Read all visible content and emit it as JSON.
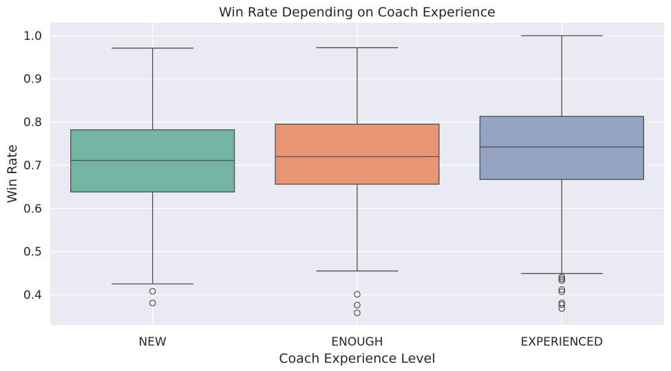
{
  "chart_data": {
    "type": "box",
    "title": "Win Rate Depending on Coach Experience",
    "xlabel": "Coach Experience Level",
    "ylabel": "Win Rate",
    "ylim": [
      0.33,
      1.03
    ],
    "yticks": [
      0.4,
      0.5,
      0.6,
      0.7,
      0.8,
      0.9,
      1.0
    ],
    "ytick_labels": [
      "0.4",
      "0.5",
      "0.6",
      "0.7",
      "0.8",
      "0.9",
      "1.0"
    ],
    "grid": true,
    "background": "#eaeaf2",
    "categories": [
      "NEW",
      "ENOUGH",
      "EXPERIENCED"
    ],
    "boxes": [
      {
        "category": "NEW",
        "color": "#72b6a1",
        "whisker_low": 0.425,
        "q1": 0.638,
        "median": 0.711,
        "q3": 0.782,
        "whisker_high": 0.971,
        "outliers": [
          0.408,
          0.381
        ]
      },
      {
        "category": "ENOUGH",
        "color": "#e99675",
        "whisker_low": 0.455,
        "q1": 0.656,
        "median": 0.72,
        "q3": 0.795,
        "whisker_high": 0.972,
        "outliers": [
          0.401,
          0.376,
          0.358
        ]
      },
      {
        "category": "EXPERIENCED",
        "color": "#95a3c3",
        "whisker_low": 0.449,
        "q1": 0.667,
        "median": 0.742,
        "q3": 0.813,
        "whisker_high": 1.0,
        "outliers": [
          0.441,
          0.437,
          0.433,
          0.412,
          0.407,
          0.381,
          0.377,
          0.368
        ]
      }
    ]
  }
}
